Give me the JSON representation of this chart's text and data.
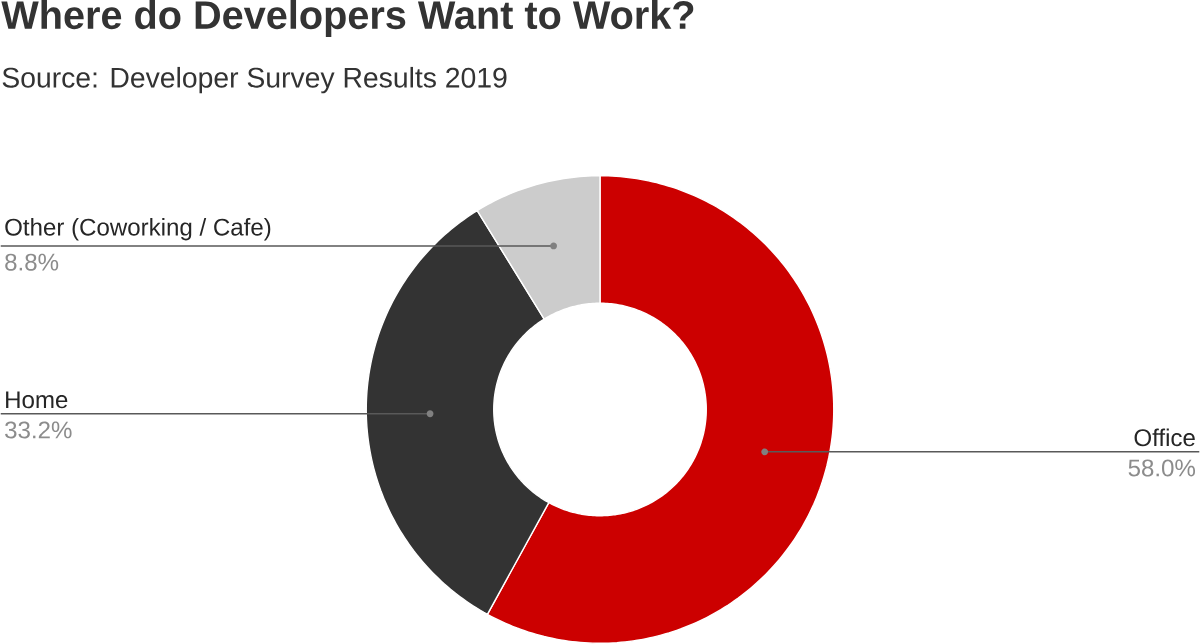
{
  "chart_data": {
    "type": "donut",
    "title": "Where do Developers Want to Work?",
    "subtitle": "Source: Developer Survey Results 2019",
    "categories": [
      "Office",
      "Home",
      "Other (Coworking / Cafe)"
    ],
    "values": [
      58.0,
      33.2,
      8.8
    ],
    "value_labels": [
      "58.0%",
      "33.2%",
      "8.8%"
    ],
    "colors": [
      "#cc0000",
      "#333333",
      "#cccccc"
    ]
  }
}
